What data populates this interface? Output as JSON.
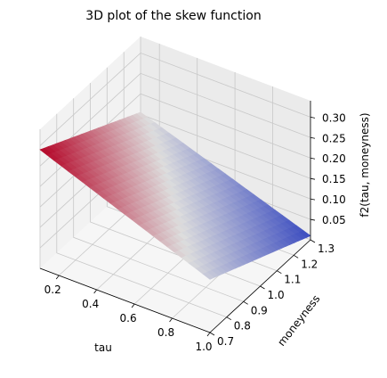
{
  "chart_data": {
    "type": "surface3d",
    "title": "3D plot of the skew function",
    "xlabel": "tau",
    "ylabel": "moneyness",
    "zlabel": "f2(tau, moneyness)",
    "xlim": [
      0.1,
      1.0
    ],
    "ylim": [
      0.7,
      1.3
    ],
    "zlim": [
      0.0,
      0.34
    ],
    "x_ticks": [
      "0.2",
      "0.4",
      "0.6",
      "0.8",
      "1.0"
    ],
    "y_ticks": [
      "0.7",
      "0.8",
      "0.9",
      "1.0",
      "1.1",
      "1.2",
      "1.3"
    ],
    "z_ticks": [
      "0.05",
      "0.10",
      "0.15",
      "0.20",
      "0.25",
      "0.30"
    ],
    "grid": true,
    "colormap": "coolwarm",
    "colors": {
      "low": "#3b4cc0",
      "mid": "#dddddd",
      "high": "#b40426",
      "pane_back": "#ebebeb",
      "pane_side": "#f2f2f2",
      "pane_floor": "#f6f6f6",
      "grid": "#c8c8c8"
    },
    "corner_values": [
      {
        "tau": 0.1,
        "moneyness": 0.7,
        "f2": 0.29
      },
      {
        "tau": 0.1,
        "moneyness": 1.3,
        "f2": 0.155
      },
      {
        "tau": 1.0,
        "moneyness": 0.7,
        "f2": 0.13
      },
      {
        "tau": 1.0,
        "moneyness": 1.3,
        "f2": 0.01
      }
    ]
  }
}
